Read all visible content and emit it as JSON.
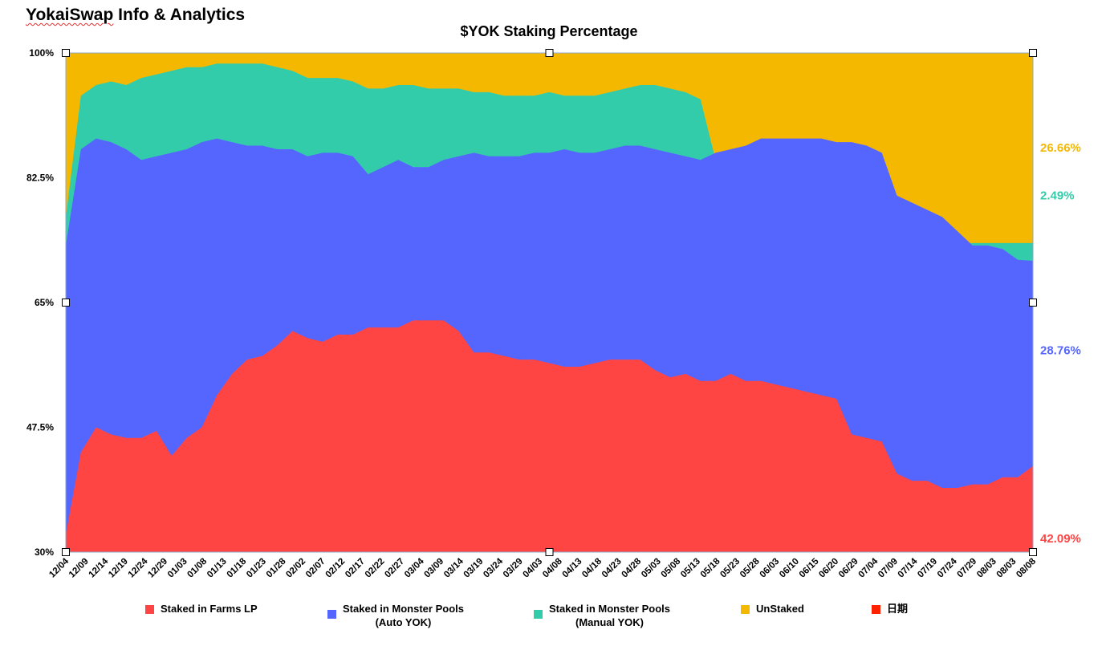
{
  "app": {
    "title_part1": "YokaiSwap",
    "title_part2": " Info & Analytics"
  },
  "chart_data": {
    "type": "area",
    "stacked": true,
    "title": "$YOK Staking Percentage",
    "ylim": [
      30,
      100
    ],
    "y_ticks": [
      "100%",
      "82.5%",
      "65%",
      "47.5%",
      "30%"
    ],
    "x_ticks": [
      "12/04",
      "12/09",
      "12/14",
      "12/19",
      "12/24",
      "12/29",
      "01/03",
      "01/08",
      "01/13",
      "01/18",
      "01/23",
      "01/28",
      "02/02",
      "02/07",
      "02/12",
      "02/17",
      "02/22",
      "02/27",
      "03/04",
      "03/09",
      "03/14",
      "03/19",
      "03/24",
      "03/29",
      "04/03",
      "04/08",
      "04/13",
      "04/18",
      "04/23",
      "04/28",
      "05/03",
      "05/08",
      "05/13",
      "05/18",
      "05/23",
      "05/28",
      "06/03",
      "06/10",
      "06/15",
      "06/20",
      "06/29",
      "07/04",
      "07/09",
      "07/14",
      "07/19",
      "07/24",
      "07/29",
      "08/03",
      "08/03",
      "08/08"
    ],
    "grid": false,
    "legend_position": "bottom",
    "series": [
      {
        "name": "Staked in Farms LP",
        "color": "#ff4444",
        "values": [
          32.5,
          44,
          47.5,
          46.5,
          46,
          46,
          47,
          43.5,
          46,
          47.5,
          52,
          55,
          57,
          57.5,
          59,
          61,
          60,
          59.5,
          60.5,
          60.5,
          61.5,
          61.5,
          61.5,
          62.5,
          62.5,
          62.5,
          61,
          58,
          58,
          57.5,
          57,
          57,
          56.5,
          56,
          56,
          56.5,
          57,
          57,
          57,
          55.5,
          54.5,
          55,
          54,
          54,
          55,
          54,
          54,
          53.5,
          53,
          52.5,
          52,
          51.5,
          46.5,
          46,
          45.5,
          41,
          40,
          40,
          39,
          39,
          39.5,
          39.5,
          40.5,
          40.5,
          42.09
        ]
      },
      {
        "name": "Staked in Monster Pools\n(Auto YOK)",
        "color": "#5566ff",
        "values": [
          73,
          86.5,
          88,
          87.5,
          86.5,
          85,
          85.5,
          86,
          86.5,
          87.5,
          88,
          87.5,
          87,
          87,
          86.5,
          86.5,
          85.5,
          86,
          86,
          85.5,
          83,
          84,
          85,
          84,
          84,
          85,
          85.5,
          86,
          85.5,
          85.5,
          85.5,
          86,
          86,
          86.5,
          86,
          86,
          86.5,
          87,
          87,
          86.5,
          86,
          85.5,
          85,
          86,
          86.5,
          87,
          88,
          88,
          88,
          88,
          88,
          87.5,
          87.5,
          87,
          86,
          80,
          79,
          78,
          77,
          75,
          73,
          73,
          72.5,
          71,
          70.85
        ]
      },
      {
        "name": "Staked in Monster Pools\n(Manual YOK)",
        "color": "#33ccaa",
        "values": [
          77,
          94,
          95.5,
          96,
          95.5,
          96.5,
          97,
          97.5,
          98,
          98,
          98.5,
          98.5,
          98.5,
          98.5,
          98,
          97.5,
          96.5,
          96.5,
          96.5,
          96,
          95,
          95,
          95.5,
          95.5,
          95,
          95,
          95,
          94.5,
          94.5,
          94,
          94,
          94,
          94.5,
          94,
          94,
          94,
          94.5,
          95,
          95.5,
          95.5,
          95,
          94.5,
          93.5,
          85,
          83,
          82,
          80,
          77,
          75.5,
          75,
          74.5,
          74.5,
          74,
          73.5,
          73.34,
          73.34,
          73.34,
          73.34,
          73.34,
          73.34,
          73.34,
          73.34,
          73.34,
          73.34,
          73.34
        ]
      },
      {
        "name": "UnStaked",
        "color": "#f5b800",
        "values": [
          100,
          100,
          100,
          100,
          100,
          100,
          100,
          100,
          100,
          100,
          100,
          100,
          100,
          100,
          100,
          100,
          100,
          100,
          100,
          100,
          100,
          100,
          100,
          100,
          100,
          100,
          100,
          100,
          100,
          100,
          100,
          100,
          100,
          100,
          100,
          100,
          100,
          100,
          100,
          100,
          100,
          100,
          100,
          100,
          100,
          100,
          100,
          100,
          100,
          100,
          100,
          100,
          100,
          100,
          100,
          100,
          100,
          100,
          100,
          100,
          100,
          100,
          100,
          100,
          100
        ]
      },
      {
        "name": "日期",
        "color": "#ff2200",
        "values": []
      }
    ],
    "end_labels": [
      {
        "text": "26.66%",
        "color": "#f5b800",
        "y": 86.7
      },
      {
        "text": "2.49%",
        "color": "#33ccaa",
        "y": 80
      },
      {
        "text": "28.76%",
        "color": "#5566ff",
        "y": 58.3
      },
      {
        "text": "42.09%",
        "color": "#ff4444",
        "y": 31.9
      }
    ]
  }
}
